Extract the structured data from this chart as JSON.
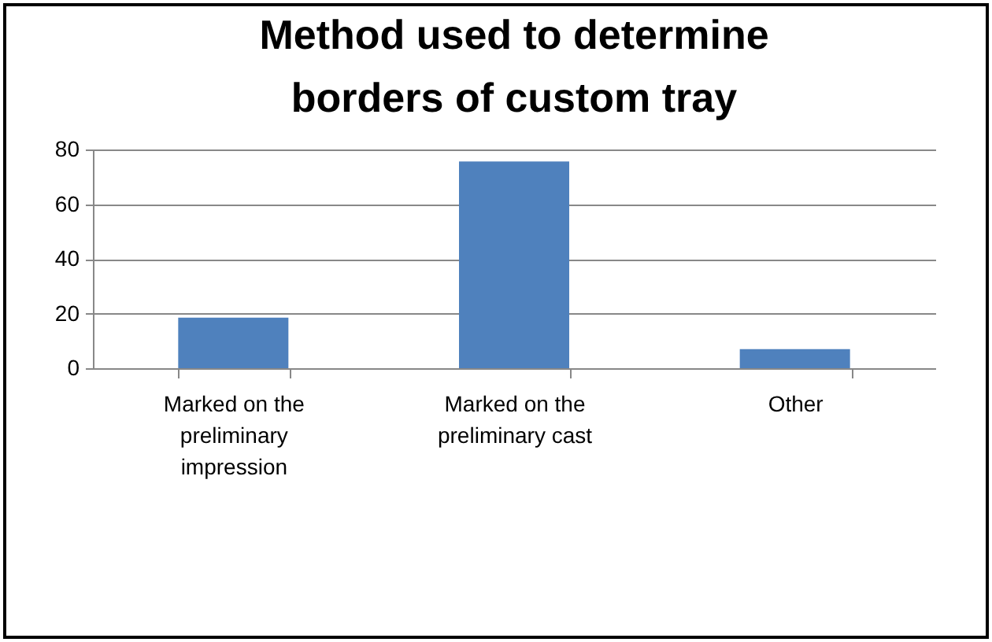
{
  "chart_data": {
    "type": "bar",
    "title": "Method used to determine borders of custom tray",
    "categories": [
      "Marked on the preliminary impression",
      "Marked on the preliminary cast",
      "Other"
    ],
    "values": [
      18.5,
      75.6,
      7
    ],
    "color": "#4f81bd",
    "ylim": [
      0,
      80
    ],
    "yticks": [
      0,
      20,
      40,
      60,
      80
    ],
    "grid": "y"
  }
}
